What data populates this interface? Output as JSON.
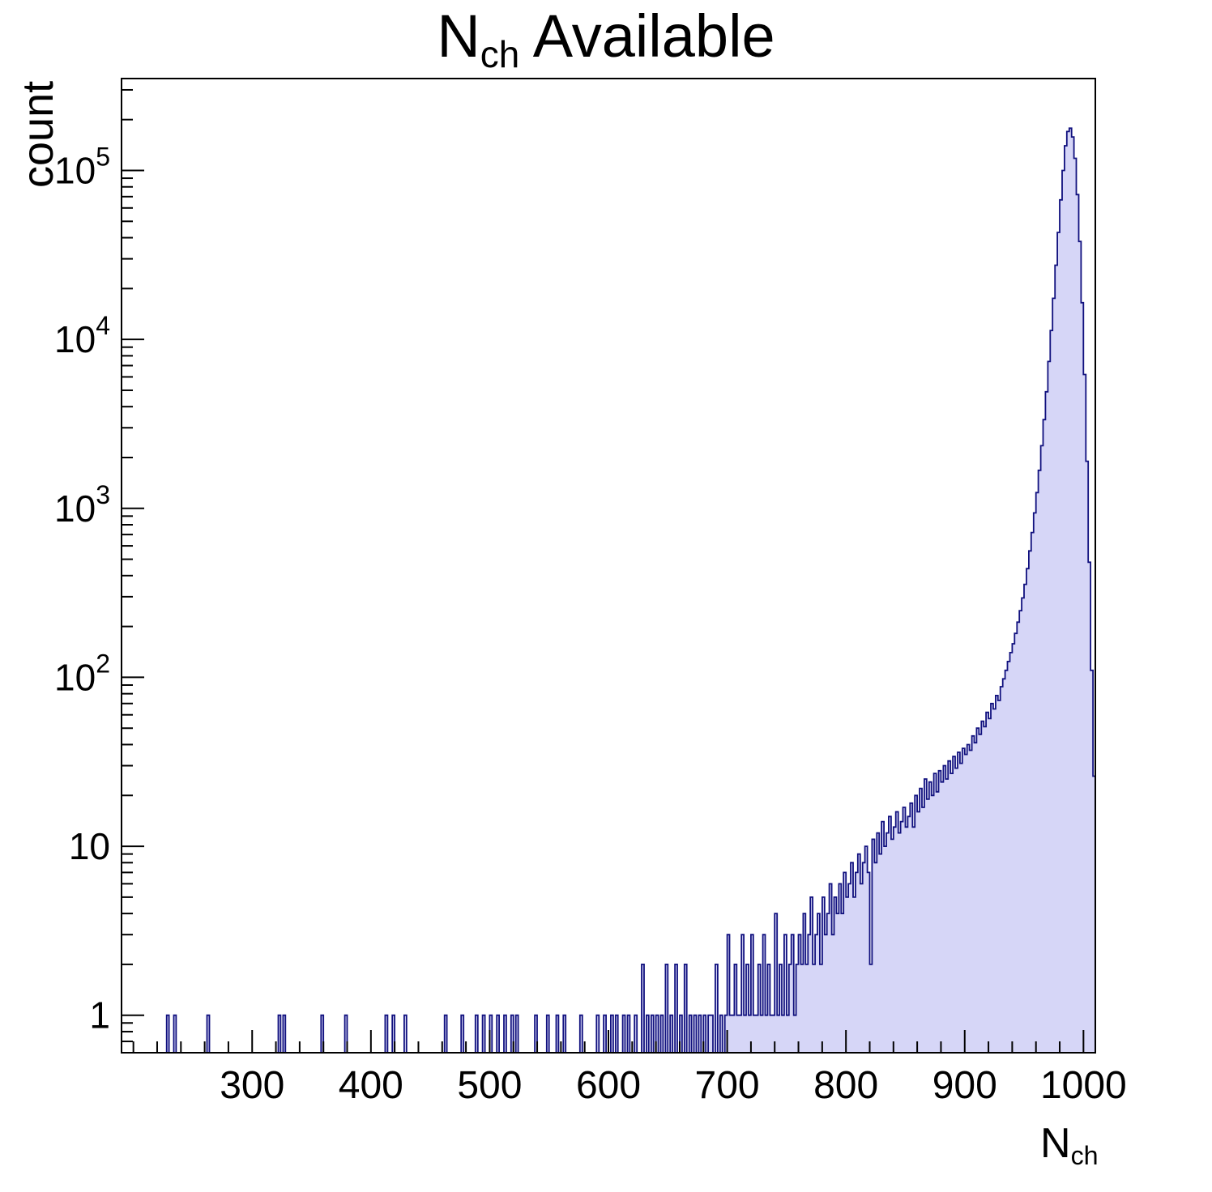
{
  "chart_data": {
    "type": "bar",
    "title": {
      "main": "N",
      "sub": "ch",
      "rest": " Available"
    },
    "ylabel": "count",
    "xlabel": {
      "main": "N",
      "sub": "ch"
    },
    "x_range": [
      190,
      1010
    ],
    "y_range_log": [
      0.6,
      350000
    ],
    "y_scale": "log",
    "bin_width": 2,
    "x_major_ticks": [
      300,
      400,
      500,
      600,
      700,
      800,
      900,
      1000
    ],
    "x_minor_step": 20,
    "y_major_ticks": [
      1,
      10,
      100,
      1000,
      10000,
      100000
    ],
    "fill_color": "#d6d6f7",
    "line_color": "#10107e",
    "frame_color": "#000000",
    "grid": false,
    "legend": "none",
    "bins": [
      [
        228,
        1
      ],
      [
        234,
        1
      ],
      [
        262,
        1
      ],
      [
        322,
        1
      ],
      [
        326,
        1
      ],
      [
        358,
        1
      ],
      [
        378,
        1
      ],
      [
        412,
        1
      ],
      [
        418,
        1
      ],
      [
        428,
        1
      ],
      [
        462,
        1
      ],
      [
        476,
        1
      ],
      [
        488,
        1
      ],
      [
        494,
        1
      ],
      [
        500,
        1
      ],
      [
        506,
        1
      ],
      [
        512,
        1
      ],
      [
        518,
        1
      ],
      [
        522,
        1
      ],
      [
        538,
        1
      ],
      [
        548,
        1
      ],
      [
        556,
        1
      ],
      [
        562,
        1
      ],
      [
        576,
        1
      ],
      [
        590,
        1
      ],
      [
        596,
        1
      ],
      [
        602,
        1
      ],
      [
        606,
        1
      ],
      [
        612,
        1
      ],
      [
        616,
        1
      ],
      [
        622,
        1
      ],
      [
        628,
        2
      ],
      [
        632,
        1
      ],
      [
        636,
        1
      ],
      [
        640,
        1
      ],
      [
        644,
        1
      ],
      [
        648,
        2
      ],
      [
        652,
        1
      ],
      [
        656,
        2
      ],
      [
        660,
        1
      ],
      [
        664,
        2
      ],
      [
        668,
        1
      ],
      [
        672,
        1
      ],
      [
        676,
        1
      ],
      [
        680,
        1
      ],
      [
        684,
        1
      ],
      [
        686,
        1
      ],
      [
        690,
        2
      ],
      [
        694,
        1
      ],
      [
        698,
        1
      ],
      [
        700,
        3
      ],
      [
        702,
        1
      ],
      [
        704,
        1
      ],
      [
        706,
        2
      ],
      [
        708,
        1
      ],
      [
        710,
        1
      ],
      [
        712,
        3
      ],
      [
        714,
        1
      ],
      [
        716,
        2
      ],
      [
        718,
        1
      ],
      [
        720,
        3
      ],
      [
        722,
        1
      ],
      [
        724,
        1
      ],
      [
        726,
        2
      ],
      [
        728,
        1
      ],
      [
        730,
        3
      ],
      [
        732,
        1
      ],
      [
        734,
        2
      ],
      [
        736,
        1
      ],
      [
        738,
        1
      ],
      [
        740,
        4
      ],
      [
        742,
        1
      ],
      [
        744,
        2
      ],
      [
        746,
        1
      ],
      [
        748,
        3
      ],
      [
        750,
        1
      ],
      [
        752,
        2
      ],
      [
        754,
        3
      ],
      [
        756,
        1
      ],
      [
        758,
        2
      ],
      [
        760,
        3
      ],
      [
        762,
        2
      ],
      [
        764,
        4
      ],
      [
        766,
        2
      ],
      [
        768,
        3
      ],
      [
        770,
        5
      ],
      [
        772,
        2
      ],
      [
        774,
        3
      ],
      [
        776,
        4
      ],
      [
        778,
        2
      ],
      [
        780,
        5
      ],
      [
        782,
        3
      ],
      [
        784,
        4
      ],
      [
        786,
        6
      ],
      [
        788,
        3
      ],
      [
        790,
        5
      ],
      [
        792,
        4
      ],
      [
        794,
        6
      ],
      [
        796,
        4
      ],
      [
        798,
        7
      ],
      [
        800,
        5
      ],
      [
        802,
        6
      ],
      [
        804,
        8
      ],
      [
        806,
        5
      ],
      [
        808,
        7
      ],
      [
        810,
        9
      ],
      [
        812,
        6
      ],
      [
        814,
        8
      ],
      [
        816,
        10
      ],
      [
        818,
        7
      ],
      [
        820,
        2
      ],
      [
        822,
        11
      ],
      [
        824,
        8
      ],
      [
        826,
        12
      ],
      [
        828,
        9
      ],
      [
        830,
        14
      ],
      [
        832,
        10
      ],
      [
        834,
        12
      ],
      [
        836,
        15
      ],
      [
        838,
        11
      ],
      [
        840,
        13
      ],
      [
        842,
        16
      ],
      [
        844,
        12
      ],
      [
        846,
        14
      ],
      [
        848,
        17
      ],
      [
        850,
        13
      ],
      [
        852,
        15
      ],
      [
        854,
        18
      ],
      [
        856,
        13
      ],
      [
        858,
        20
      ],
      [
        860,
        16
      ],
      [
        862,
        22
      ],
      [
        864,
        17
      ],
      [
        866,
        25
      ],
      [
        868,
        19
      ],
      [
        870,
        24
      ],
      [
        872,
        20
      ],
      [
        874,
        27
      ],
      [
        876,
        21
      ],
      [
        878,
        28
      ],
      [
        880,
        24
      ],
      [
        882,
        30
      ],
      [
        884,
        25
      ],
      [
        886,
        32
      ],
      [
        888,
        27
      ],
      [
        890,
        34
      ],
      [
        892,
        29
      ],
      [
        894,
        36
      ],
      [
        896,
        31
      ],
      [
        898,
        38
      ],
      [
        900,
        35
      ],
      [
        902,
        40
      ],
      [
        904,
        37
      ],
      [
        906,
        45
      ],
      [
        908,
        41
      ],
      [
        910,
        50
      ],
      [
        912,
        46
      ],
      [
        914,
        55
      ],
      [
        916,
        51
      ],
      [
        918,
        62
      ],
      [
        920,
        57
      ],
      [
        922,
        70
      ],
      [
        924,
        65
      ],
      [
        926,
        78
      ],
      [
        928,
        73
      ],
      [
        930,
        88
      ],
      [
        932,
        98
      ],
      [
        934,
        110
      ],
      [
        936,
        124
      ],
      [
        938,
        140
      ],
      [
        940,
        158
      ],
      [
        942,
        182
      ],
      [
        944,
        212
      ],
      [
        946,
        248
      ],
      [
        948,
        295
      ],
      [
        950,
        355
      ],
      [
        952,
        440
      ],
      [
        954,
        560
      ],
      [
        956,
        720
      ],
      [
        958,
        940
      ],
      [
        960,
        1240
      ],
      [
        962,
        1680
      ],
      [
        964,
        2350
      ],
      [
        966,
        3350
      ],
      [
        968,
        4900
      ],
      [
        970,
        7400
      ],
      [
        972,
        11300
      ],
      [
        974,
        17500
      ],
      [
        976,
        27500
      ],
      [
        978,
        43000
      ],
      [
        980,
        67000
      ],
      [
        982,
        100000
      ],
      [
        984,
        140000
      ],
      [
        986,
        170000
      ],
      [
        988,
        178000
      ],
      [
        990,
        158000
      ],
      [
        992,
        118000
      ],
      [
        994,
        72000
      ],
      [
        996,
        38000
      ],
      [
        998,
        16500
      ],
      [
        1000,
        6200
      ],
      [
        1002,
        1900
      ],
      [
        1004,
        480
      ],
      [
        1006,
        110
      ],
      [
        1008,
        26
      ]
    ]
  }
}
